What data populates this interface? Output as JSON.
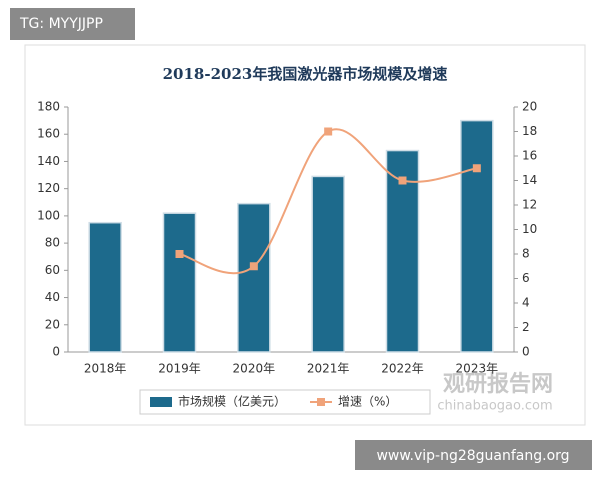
{
  "overlay": {
    "badge": "TG: MYYJJPP",
    "watermark_cn": "观研报告网",
    "watermark_en": "chinabaogao.com",
    "footer_url": "www.vip-ng28guanfang.org"
  },
  "chart_data": {
    "type": "bar",
    "title": "2018-2023年我国激光器市场规模及增速",
    "categories": [
      "2018年",
      "2019年",
      "2020年",
      "2021年",
      "2022年",
      "2023年"
    ],
    "series": [
      {
        "name": "市场规模（亿美元）",
        "type": "bar",
        "color": "#1d6a8c",
        "values": [
          95,
          102,
          109,
          129,
          148,
          170
        ]
      },
      {
        "name": "增速（%）",
        "type": "line",
        "axis": "y2",
        "color": "#f0a37a",
        "values": [
          null,
          8,
          7,
          18,
          14,
          15
        ]
      }
    ],
    "ylim": [
      0,
      180
    ],
    "yticks": [
      0,
      20,
      40,
      60,
      80,
      100,
      120,
      140,
      160,
      180
    ],
    "y2lim": [
      0,
      20
    ],
    "y2ticks": [
      0,
      2,
      4,
      6,
      8,
      10,
      12,
      14,
      16,
      18,
      20
    ],
    "grid": false,
    "legend": "bottom"
  }
}
